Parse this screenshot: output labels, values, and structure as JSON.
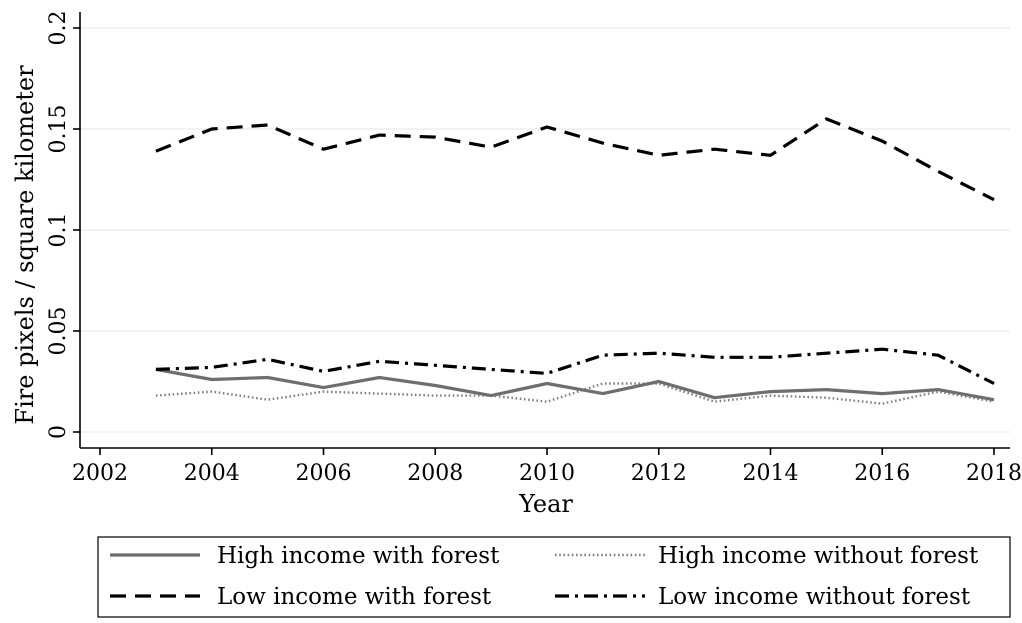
{
  "chart_data": {
    "type": "line",
    "title": "",
    "xlabel": "Year",
    "ylabel": "Fire pixels / square kilometer",
    "xlim": [
      2002,
      2018
    ],
    "ylim": [
      0,
      0.2
    ],
    "x_ticks": [
      2002,
      2004,
      2006,
      2008,
      2010,
      2012,
      2014,
      2016,
      2018
    ],
    "y_ticks": [
      0,
      0.05,
      0.1,
      0.15,
      0.2
    ],
    "x_tick_labels": [
      "2002",
      "2004",
      "2006",
      "2008",
      "2010",
      "2012",
      "2014",
      "2016",
      "2018"
    ],
    "y_tick_labels": [
      "0",
      "0.05",
      "0.1",
      "0.15",
      "0.2"
    ],
    "grid": "horizontal",
    "legend_position": "bottom",
    "x": [
      2003,
      2004,
      2005,
      2006,
      2007,
      2008,
      2009,
      2010,
      2011,
      2012,
      2013,
      2014,
      2015,
      2016,
      2017,
      2018
    ],
    "series": [
      {
        "name": "High income with forest",
        "color": "#6e6e6e",
        "style": "solid",
        "values": [
          0.031,
          0.026,
          0.027,
          0.022,
          0.027,
          0.023,
          0.018,
          0.024,
          0.019,
          0.025,
          0.017,
          0.02,
          0.021,
          0.019,
          0.021,
          0.016
        ]
      },
      {
        "name": "High income without forest",
        "color": "#7f7f7f",
        "style": "dotted",
        "values": [
          0.018,
          0.02,
          0.016,
          0.02,
          0.019,
          0.018,
          0.018,
          0.015,
          0.024,
          0.024,
          0.015,
          0.018,
          0.017,
          0.014,
          0.02,
          0.015
        ]
      },
      {
        "name": "Low income with forest",
        "color": "#000000",
        "style": "dashed",
        "values": [
          0.139,
          0.15,
          0.152,
          0.14,
          0.147,
          0.146,
          0.141,
          0.151,
          0.143,
          0.137,
          0.14,
          0.137,
          0.155,
          0.144,
          0.129,
          0.115
        ]
      },
      {
        "name": "Low income without forest",
        "color": "#000000",
        "style": "dashdot",
        "values": [
          0.031,
          0.032,
          0.036,
          0.03,
          0.035,
          0.033,
          0.031,
          0.029,
          0.038,
          0.039,
          0.037,
          0.037,
          0.039,
          0.041,
          0.038,
          0.024
        ]
      }
    ]
  }
}
